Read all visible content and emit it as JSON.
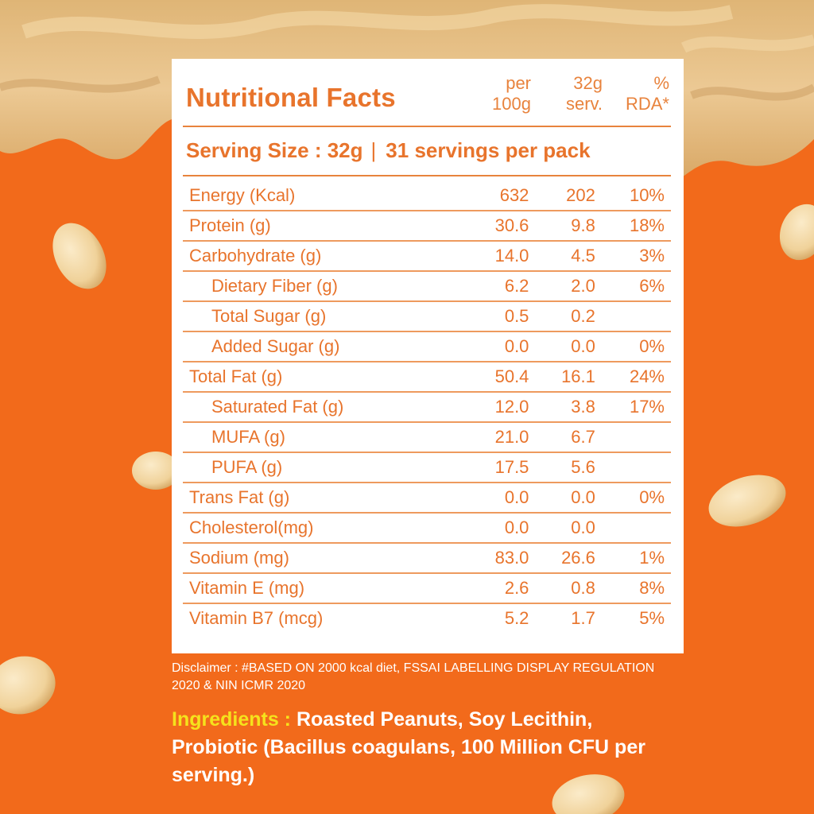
{
  "nutrition": {
    "title": "Nutritional Facts",
    "columns": [
      {
        "line1": "per",
        "line2": "100g"
      },
      {
        "line1": "32g",
        "line2": "serv."
      },
      {
        "line1": "%",
        "line2": "RDA*"
      }
    ],
    "serving_size": "Serving Size : 32g",
    "separator": "|",
    "servings_per_pack": "31 servings per pack",
    "rows": [
      {
        "name": "Energy (Kcal)",
        "per100": "632",
        "per_serving": "202",
        "rda": "10%"
      },
      {
        "name": "Protein (g)",
        "per100": "30.6",
        "per_serving": "9.8",
        "rda": "18%"
      },
      {
        "name": "Carbohydrate (g)",
        "per100": "14.0",
        "per_serving": "4.5",
        "rda": "3%"
      },
      {
        "name": "Dietary Fiber (g)",
        "per100": "6.2",
        "per_serving": "2.0",
        "rda": "6%"
      },
      {
        "name": "Total Sugar (g)",
        "per100": "0.5",
        "per_serving": "0.2",
        "rda": ""
      },
      {
        "name": "Added Sugar (g)",
        "per100": "0.0",
        "per_serving": "0.0",
        "rda": "0%"
      },
      {
        "name": "Total Fat (g)",
        "per100": "50.4",
        "per_serving": "16.1",
        "rda": "24%"
      },
      {
        "name": "Saturated Fat (g)",
        "per100": "12.0",
        "per_serving": "3.8",
        "rda": "17%"
      },
      {
        "name": "MUFA (g)",
        "per100": "21.0",
        "per_serving": "6.7",
        "rda": ""
      },
      {
        "name": "PUFA (g)",
        "per100": "17.5",
        "per_serving": "5.6",
        "rda": ""
      },
      {
        "name": "Trans Fat (g)",
        "per100": "0.0",
        "per_serving": "0.0",
        "rda": "0%"
      },
      {
        "name": "Cholesterol(mg)",
        "per100": "0.0",
        "per_serving": "0.0",
        "rda": ""
      },
      {
        "name": "Sodium (mg)",
        "per100": "83.0",
        "per_serving": "26.6",
        "rda": "1%"
      },
      {
        "name": "Vitamin E (mg)",
        "per100": "2.6",
        "per_serving": "0.8",
        "rda": "8%"
      },
      {
        "name": "Vitamin B7 (mcg)",
        "per100": "5.2",
        "per_serving": "1.7",
        "rda": "5%"
      }
    ]
  },
  "disclaimer": "Disclaimer : #BASED ON 2000 kcal diet, FSSAI LABELLING DISPLAY REGULATION 2020 & NIN ICMR 2020",
  "ingredients": {
    "label": "Ingredients : ",
    "text": "Roasted Peanuts, Soy Lecithin, Probiotic (Bacillus coagulans, 100 Million CFU per serving.)"
  },
  "colors": {
    "background": "#f26a1b",
    "accent_text": "#e8742c",
    "ingredients_label": "#f5e21c",
    "peanut_butter": "#e9c48e"
  }
}
